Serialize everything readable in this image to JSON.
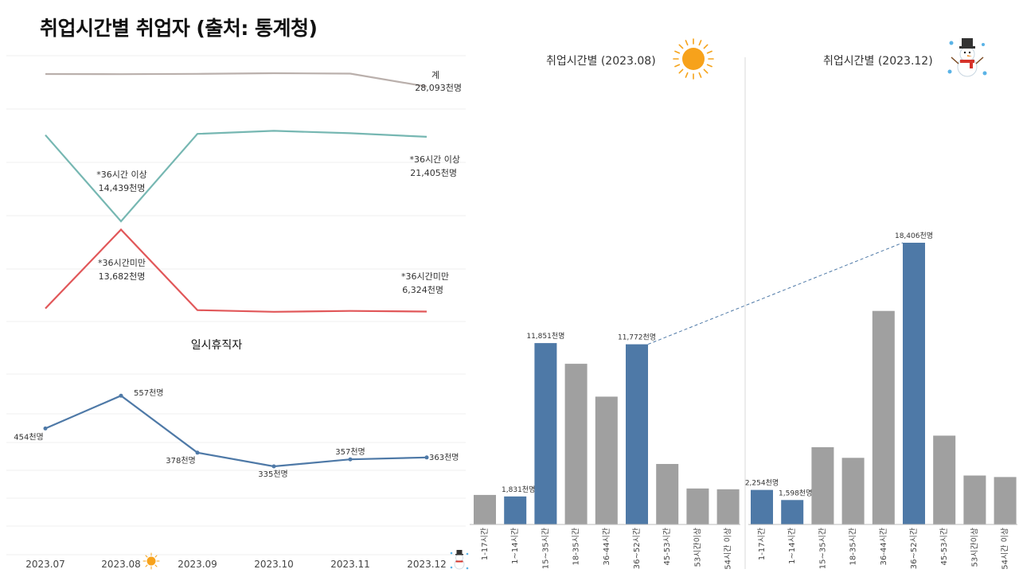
{
  "title": "취업시간별 취업자 (출처: 통계청)",
  "colors": {
    "highlight": "#4e79a7",
    "base": "#a0a0a0",
    "total": "#bab0ac",
    "over36": "#76b7b2",
    "under36": "#e15759",
    "temporary": "#4e79a7"
  },
  "icons": {
    "aug": "sun-icon",
    "dec": "snowman-icon"
  },
  "chart_data": [
    {
      "type": "line",
      "months": [
        "2023.07",
        "2023.08",
        "2023.09",
        "2023.10",
        "2023.11",
        "2023.12"
      ],
      "series": [
        {
          "name": "계",
          "values": [
            28750,
            28740,
            28760,
            28790,
            28770,
            28093
          ],
          "end_label": [
            "계",
            "28,093천명"
          ]
        },
        {
          "name": "*36시간 이상",
          "values": [
            21550,
            14439,
            21650,
            21900,
            21700,
            21405
          ],
          "point_label": [
            "*36시간 이상",
            "14,439천명"
          ],
          "end_label": [
            "*36시간 이상",
            "21,405천명"
          ]
        },
        {
          "name": "*36시간미만",
          "values": [
            6600,
            13682,
            6450,
            6300,
            6380,
            6324
          ],
          "point_label": [
            "*36시간미만",
            "13,682천명"
          ],
          "end_label": [
            "*36시간미만",
            "6,324천명"
          ]
        }
      ]
    },
    {
      "type": "line",
      "title": "일시휴직자",
      "series": [
        {
          "name": "일시휴직자",
          "values": [
            454,
            557,
            378,
            335,
            357,
            363
          ],
          "labels": [
            "454천명",
            "557천명",
            "378천명",
            "335천명",
            "357천명",
            "363천명"
          ]
        }
      ]
    },
    {
      "type": "bar",
      "title": "취업시간별 (2023.08)",
      "categories": [
        "1-17시간",
        "1~14시간",
        "15~35시간",
        "18-35시간",
        "36-44시간",
        "36~52시간",
        "45-53시간",
        "53시간이상",
        "54시간 이상"
      ],
      "values": [
        1930,
        1831,
        11851,
        10500,
        8350,
        11772,
        3950,
        2350,
        2300
      ],
      "highlight": [
        false,
        true,
        true,
        false,
        false,
        true,
        false,
        false,
        false
      ],
      "value_labels": [
        "",
        "1,831천명",
        "11,851천명",
        "",
        "",
        "11,772천명",
        "",
        "",
        ""
      ]
    },
    {
      "type": "bar",
      "title": "취업시간별 (2023.12)",
      "categories": [
        "1-17시간",
        "1~14시간",
        "15~35시간",
        "18-35시간",
        "36-44시간",
        "36~52시간",
        "45-53시간",
        "53시간이상",
        "54시간 이상"
      ],
      "values": [
        2254,
        1598,
        5050,
        4350,
        13950,
        18406,
        5800,
        3200,
        3100
      ],
      "highlight": [
        true,
        true,
        false,
        false,
        false,
        true,
        false,
        false,
        false
      ],
      "value_labels": [
        "2,254천명",
        "1,598천명",
        "",
        "",
        "",
        "18,406천명",
        "",
        "",
        ""
      ]
    }
  ]
}
